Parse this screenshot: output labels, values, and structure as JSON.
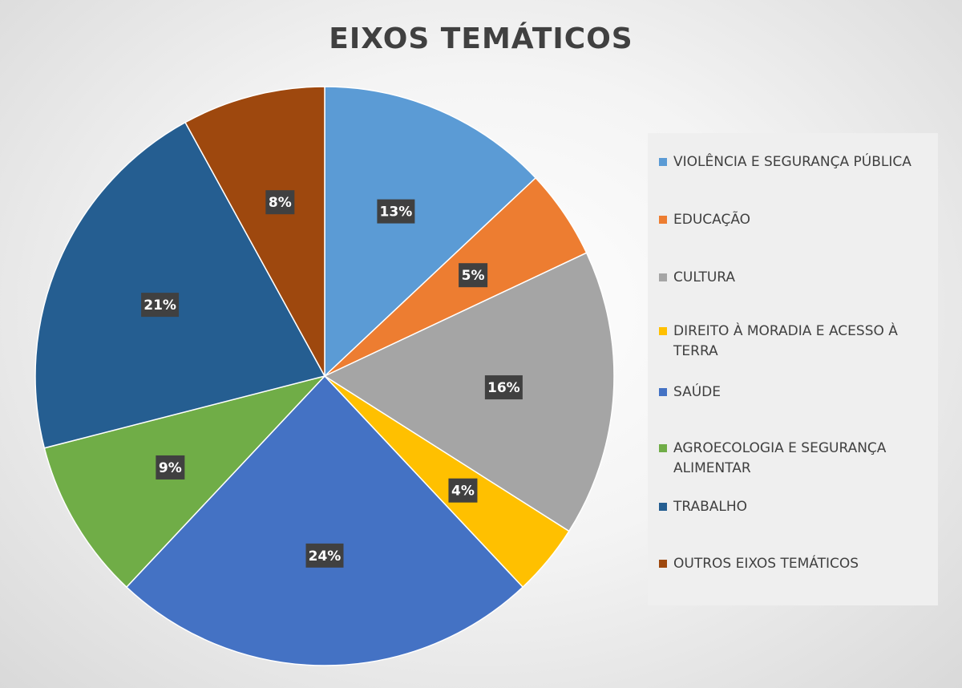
{
  "chart_data": {
    "type": "pie",
    "title": "EIXOS TEMÁTICOS",
    "legend_position": "right",
    "categories": [
      "VIOLÊNCIA E SEGURANÇA PÚBLICA",
      "EDUCAÇÃO",
      "CULTURA",
      "DIREITO À MORADIA E ACESSO À TERRA",
      "SAÚDE",
      "AGROECOLOGIA E SEGURANÇA ALIMENTAR",
      "TRABALHO",
      "OUTROS EIXOS TEMÁTICOS"
    ],
    "values": [
      13,
      5,
      16,
      4,
      24,
      9,
      21,
      8
    ],
    "data_labels": [
      "13%",
      "5%",
      "16%",
      "4%",
      "24%",
      "9%",
      "21%",
      "8%"
    ],
    "colors": [
      "#5B9BD5",
      "#ED7D31",
      "#A5A5A5",
      "#FFC000",
      "#4472C4",
      "#70AD47",
      "#255E91",
      "#9E480E"
    ]
  }
}
